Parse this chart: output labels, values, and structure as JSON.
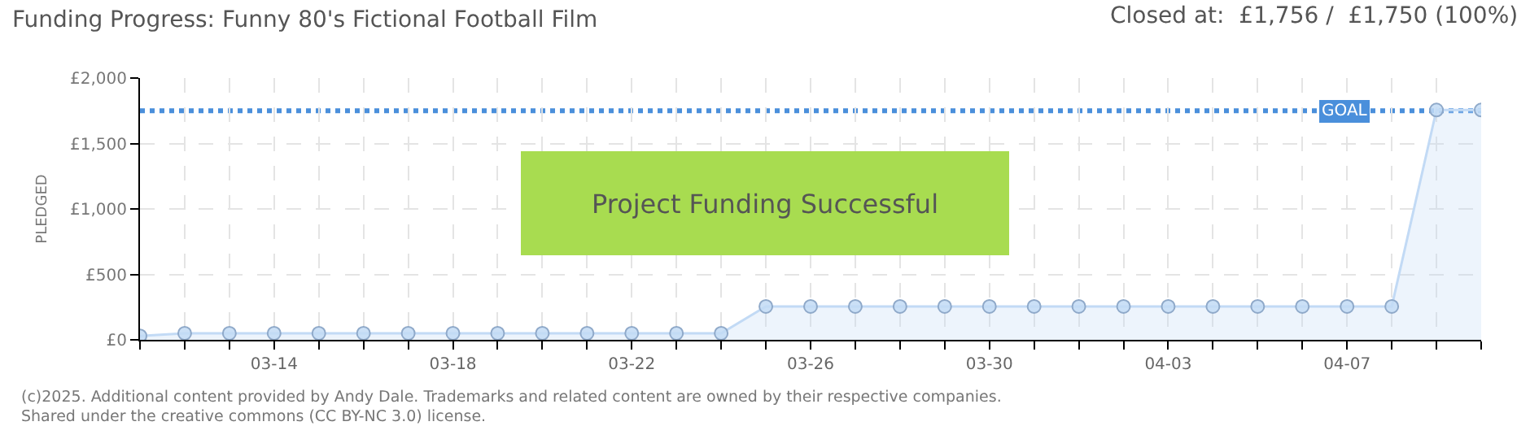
{
  "chart_data": {
    "type": "area",
    "title": "Funding Progress: Funny 80's Fictional Football Film",
    "subtitle": "Closed at:  £1,756 /  £1,750 (100%)",
    "ylabel": "PLEDGED",
    "x": [
      "--03-11",
      "--03-12",
      "--03-13",
      "--03-14",
      "--03-15",
      "--03-16",
      "--03-17",
      "--03-18",
      "--03-19",
      "--03-20",
      "--03-21",
      "--03-22",
      "--03-23",
      "--03-24",
      "--03-25",
      "--03-26",
      "--03-27",
      "--03-28",
      "--03-29",
      "--03-30",
      "--03-31",
      "--04-01",
      "--04-02",
      "--04-03",
      "--04-04",
      "--04-05",
      "--04-06",
      "--04-07",
      "--04-08",
      "--04-09",
      "--04-10"
    ],
    "series": [
      {
        "color": "#c2daf5",
        "values": [
          30,
          50,
          50,
          50,
          50,
          50,
          50,
          50,
          50,
          50,
          50,
          50,
          50,
          50,
          255,
          255,
          255,
          255,
          255,
          255,
          255,
          255,
          255,
          255,
          255,
          255,
          255,
          255,
          255,
          1756,
          1756
        ]
      }
    ],
    "xlim": [
      "--03-11",
      "--04-10"
    ],
    "xticks": [
      {
        "value": "--03-11",
        "label": null
      },
      {
        "value": "--03-12",
        "label": null
      },
      {
        "value": "--03-13",
        "label": null
      },
      {
        "value": "--03-14",
        "label": "03-14"
      },
      {
        "value": "--03-15",
        "label": null
      },
      {
        "value": "--03-16",
        "label": null
      },
      {
        "value": "--03-17",
        "label": null
      },
      {
        "value": "--03-18",
        "label": "03-18"
      },
      {
        "value": "--03-19",
        "label": null
      },
      {
        "value": "--03-20",
        "label": null
      },
      {
        "value": "--03-21",
        "label": null
      },
      {
        "value": "--03-22",
        "label": "03-22"
      },
      {
        "value": "--03-23",
        "label": null
      },
      {
        "value": "--03-24",
        "label": null
      },
      {
        "value": "--03-25",
        "label": null
      },
      {
        "value": "--03-26",
        "label": "03-26"
      },
      {
        "value": "--03-27",
        "label": null
      },
      {
        "value": "--03-28",
        "label": null
      },
      {
        "value": "--03-29",
        "label": null
      },
      {
        "value": "--03-30",
        "label": "03-30"
      },
      {
        "value": "--03-31",
        "label": null
      },
      {
        "value": "--04-01",
        "label": null
      },
      {
        "value": "--04-02",
        "label": null
      },
      {
        "value": "--04-03",
        "label": "04-03"
      },
      {
        "value": "--04-04",
        "label": null
      },
      {
        "value": "--04-05",
        "label": null
      },
      {
        "value": "--04-06",
        "label": null
      },
      {
        "value": "--04-07",
        "label": "04-07"
      },
      {
        "value": "--04-08",
        "label": null
      },
      {
        "value": "--04-09",
        "label": null
      },
      {
        "value": "--04-10",
        "label": null
      }
    ],
    "ylim": [
      0,
      2000
    ],
    "yticks": [
      {
        "value": 0,
        "label": "£0"
      },
      {
        "value": 500,
        "label": "£500"
      },
      {
        "value": 1000,
        "label": "£1,000"
      },
      {
        "value": 1500,
        "label": "£1,500"
      },
      {
        "value": 2000,
        "label": "£2,000"
      }
    ],
    "ref_lines": [
      {
        "axis": "y",
        "value": 1750,
        "label": "GOAL",
        "color": "#4a8fdb",
        "line_style": "dotted"
      }
    ],
    "annotations": [
      "Project Funding Successful",
      "(c)2025. Additional content provided by Andy Dale. Trademarks and related content are owned by their respective companies.",
      "Shared under the creative commons (CC BY-NC 3.0) license."
    ],
    "grid": true,
    "marker": "circle",
    "line_style": "solid"
  }
}
